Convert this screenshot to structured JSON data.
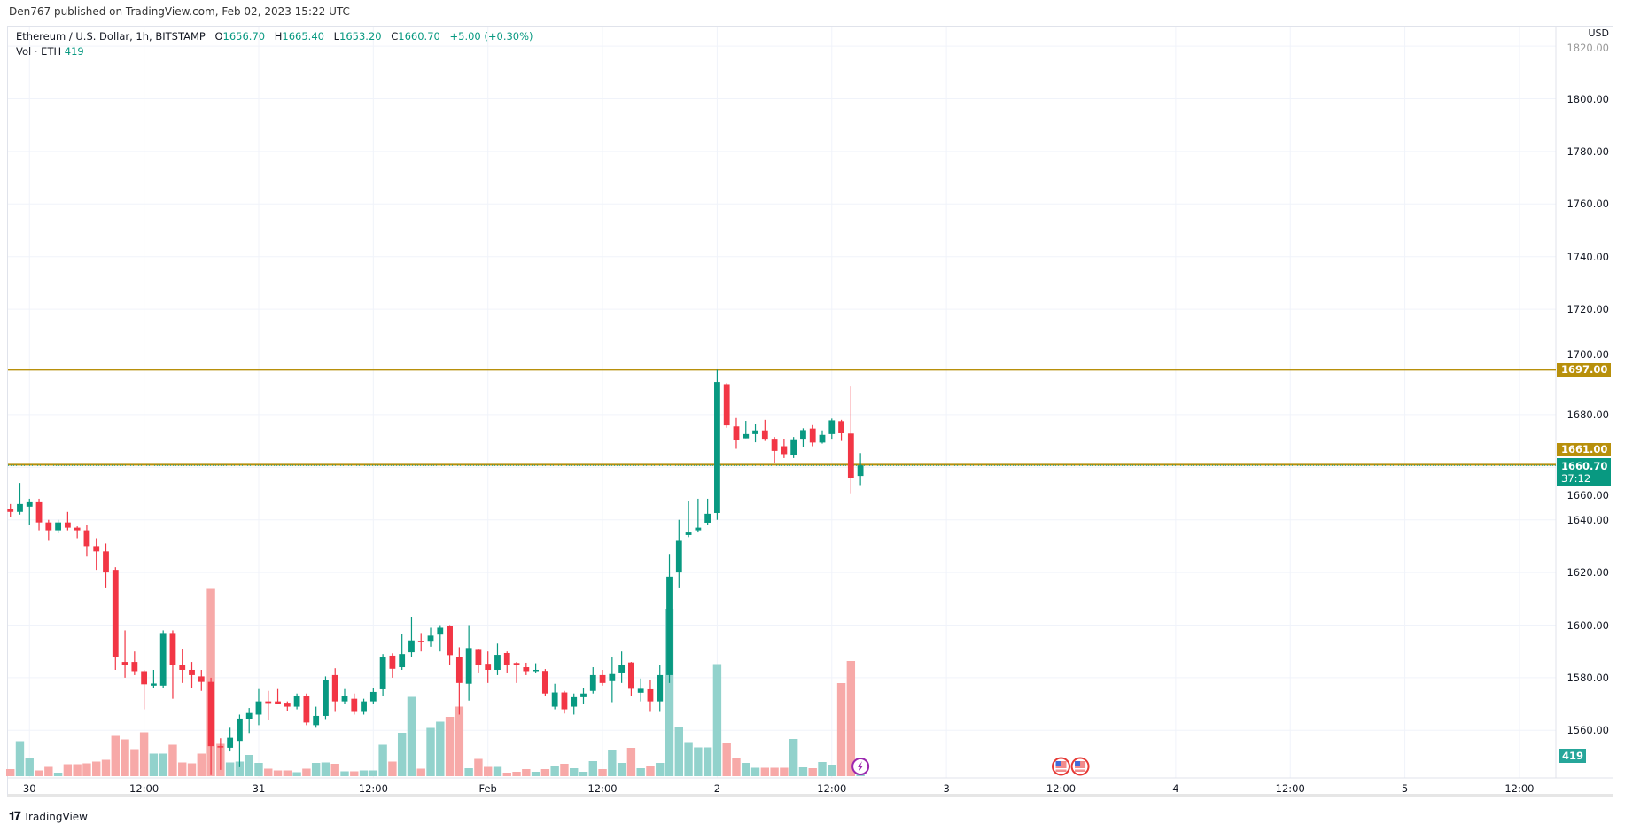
{
  "header": {
    "published": "Den767 published on TradingView.com, Feb 02, 2023 15:22 UTC"
  },
  "legend": {
    "symbol": "Ethereum / U.S. Dollar, 1h, BITSTAMP",
    "o_label": "O",
    "o": "1656.70",
    "h_label": "H",
    "h": "1665.40",
    "l_label": "L",
    "l": "1653.20",
    "c_label": "C",
    "c": "1660.70",
    "change": "+5.00 (+0.30%)",
    "vol_label": "Vol · ETH",
    "vol": "419"
  },
  "price_axis": {
    "currency": "USD",
    "ticks": [
      "1820.00",
      "1800.00",
      "1780.00",
      "1760.00",
      "1740.00",
      "1720.00",
      "1700.00",
      "1680.00",
      "1660.00",
      "1640.00",
      "1620.00",
      "1600.00",
      "1580.00",
      "1560.00"
    ],
    "tags": {
      "resistance": "1697.00",
      "support": "1661.00",
      "last_price": "1660.70",
      "countdown": "37:12",
      "volume": "419"
    }
  },
  "time_axis": {
    "ticks": [
      "30",
      "12:00",
      "31",
      "12:00",
      "Feb",
      "12:00",
      "2",
      "12:00",
      "3",
      "12:00",
      "4",
      "12:00",
      "5",
      "12:00"
    ]
  },
  "footer": {
    "brand": "TradingView"
  },
  "colors": {
    "up": "#089981",
    "down": "#f23645",
    "vol_up": "#92d2cc",
    "vol_down": "#f7a9a8",
    "level": "#b8900b",
    "event": "#9c27b0"
  },
  "chart_data": {
    "type": "candlestick",
    "interval": "1h",
    "ylim": [
      1545,
      1825
    ],
    "grid": true,
    "horizontal_levels": [
      1697.0,
      1661.0
    ],
    "columns": [
      "time",
      "open",
      "high",
      "low",
      "close",
      "volume"
    ],
    "candles": [
      [
        "Jan 29 22:00",
        1644,
        1646,
        1641,
        1643,
        160
      ],
      [
        "Jan 29 23:00",
        1643,
        1654,
        1642,
        1646,
        790
      ],
      [
        "Jan 30 00:00",
        1645,
        1648,
        1638,
        1647,
        410
      ],
      [
        "Jan 30 01:00",
        1647,
        1648,
        1636,
        1639,
        130
      ],
      [
        "Jan 30 02:00",
        1639,
        1640,
        1632,
        1636,
        210
      ],
      [
        "Jan 30 03:00",
        1636,
        1640,
        1635,
        1639,
        80
      ],
      [
        "Jan 30 04:00",
        1639,
        1643,
        1636,
        1637,
        270
      ],
      [
        "Jan 30 05:00",
        1637,
        1637.5,
        1633,
        1636,
        270
      ],
      [
        "Jan 30 06:00",
        1636,
        1638,
        1626,
        1630,
        290
      ],
      [
        "Jan 30 07:00",
        1630,
        1633,
        1621,
        1628,
        330
      ],
      [
        "Jan 30 08:00",
        1628,
        1631,
        1614,
        1620,
        370
      ],
      [
        "Jan 30 09:00",
        1621,
        1622,
        1583,
        1588,
        910
      ],
      [
        "Jan 30 10:00",
        1586,
        1598,
        1580,
        1585,
        830
      ],
      [
        "Jan 30 11:00",
        1586,
        1590,
        1581,
        1582.5,
        610
      ],
      [
        "Jan 30 12:00",
        1582.5,
        1583,
        1568,
        1577.5,
        990
      ],
      [
        "Jan 30 13:00",
        1577,
        1583,
        1576,
        1577.8,
        510
      ],
      [
        "Jan 30 14:00",
        1577,
        1598,
        1576,
        1597,
        510
      ],
      [
        "Jan 30 15:00",
        1597,
        1598,
        1572,
        1585,
        710
      ],
      [
        "Jan 30 16:00",
        1585,
        1591,
        1578,
        1583,
        310
      ],
      [
        "Jan 30 17:00",
        1583,
        1586,
        1576,
        1581,
        290
      ],
      [
        "Jan 30 18:00",
        1580.5,
        1583,
        1575,
        1578.4,
        510
      ],
      [
        "Jan 30 19:00",
        1578.4,
        1580,
        1543,
        1554,
        4230
      ],
      [
        "Jan 30 20:00",
        1554,
        1557,
        1545,
        1553.5,
        730
      ],
      [
        "Jan 30 21:00",
        1553.4,
        1561,
        1552,
        1557.2,
        310
      ],
      [
        "Jan 30 22:00",
        1556,
        1566,
        1546,
        1564.5,
        330
      ],
      [
        "Jan 30 23:00",
        1564.2,
        1568.5,
        1559,
        1566.6,
        480
      ],
      [
        "Jan 31 00:00",
        1566,
        1575.7,
        1562,
        1571,
        300
      ],
      [
        "Jan 31 01:00",
        1571,
        1575,
        1563.8,
        1570.4,
        170
      ],
      [
        "Jan 31 02:00",
        1571,
        1575.7,
        1570,
        1570.2,
        130
      ],
      [
        "Jan 31 03:00",
        1570.5,
        1571,
        1567.4,
        1569,
        130
      ],
      [
        "Jan 31 04:00",
        1569,
        1574,
        1568,
        1573,
        90
      ],
      [
        "Jan 31 05:00",
        1573,
        1574,
        1562,
        1563,
        170
      ],
      [
        "Jan 31 06:00",
        1562,
        1569,
        1561,
        1565.5,
        300
      ],
      [
        "Jan 31 07:00",
        1565.5,
        1580.5,
        1564,
        1579,
        310
      ],
      [
        "Jan 31 08:00",
        1581,
        1583.6,
        1567,
        1571,
        280
      ],
      [
        "Jan 31 09:00",
        1571,
        1575.7,
        1570,
        1573,
        110
      ],
      [
        "Jan 31 10:00",
        1572,
        1574,
        1566,
        1567,
        110
      ],
      [
        "Jan 31 11:00",
        1567,
        1572,
        1566,
        1571,
        130
      ],
      [
        "Jan 31 12:00",
        1571,
        1576,
        1570,
        1574.6,
        130
      ],
      [
        "Jan 31 13:00",
        1575.6,
        1589,
        1573,
        1588,
        710
      ],
      [
        "Jan 31 14:00",
        1588.4,
        1589.3,
        1580,
        1583.4,
        330
      ],
      [
        "Jan 31 15:00",
        1584,
        1596.6,
        1583,
        1589,
        980
      ],
      [
        "Jan 31 16:00",
        1589.7,
        1603.2,
        1588,
        1594.2,
        1790
      ],
      [
        "Jan 31 17:00",
        1594,
        1597,
        1590,
        1593.8,
        170
      ],
      [
        "Jan 31 18:00",
        1593.7,
        1599,
        1591.8,
        1596,
        1090
      ],
      [
        "Jan 31 19:00",
        1596.4,
        1600,
        1590,
        1599,
        1230
      ],
      [
        "Jan 31 20:00",
        1599.6,
        1600,
        1585,
        1588.6,
        1340
      ],
      [
        "Jan 31 21:00",
        1588,
        1591.6,
        1566,
        1578,
        1570
      ],
      [
        "Jan 31 22:00",
        1577.7,
        1600,
        1571.3,
        1591.3,
        180
      ],
      [
        "Jan 31 23:00",
        1590.6,
        1591,
        1582,
        1585,
        390
      ],
      [
        "Feb 01 00:00",
        1585.3,
        1590,
        1578,
        1583,
        210
      ],
      [
        "Feb 01 01:00",
        1583,
        1593,
        1581,
        1588.7,
        210
      ],
      [
        "Feb 01 02:00",
        1589.4,
        1590,
        1582,
        1585,
        80
      ],
      [
        "Feb 01 03:00",
        1585.6,
        1586,
        1578,
        1585,
        100
      ],
      [
        "Feb 01 04:00",
        1584,
        1585.7,
        1581,
        1582.5,
        160
      ],
      [
        "Feb 01 05:00",
        1582.6,
        1585.5,
        1582,
        1583,
        100
      ],
      [
        "Feb 01 06:00",
        1582.6,
        1583.3,
        1573,
        1574,
        160
      ],
      [
        "Feb 01 07:00",
        1569,
        1577.7,
        1568,
        1574.4,
        220
      ],
      [
        "Feb 01 08:00",
        1574.4,
        1575,
        1566.4,
        1568,
        280
      ],
      [
        "Feb 01 09:00",
        1569,
        1574,
        1566,
        1572.6,
        180
      ],
      [
        "Feb 01 10:00",
        1572.6,
        1576,
        1570,
        1574,
        100
      ],
      [
        "Feb 01 11:00",
        1575,
        1584,
        1574,
        1581,
        340
      ],
      [
        "Feb 01 12:00",
        1581,
        1583,
        1577,
        1578,
        160
      ],
      [
        "Feb 01 13:00",
        1578.7,
        1587.8,
        1570.7,
        1581.4,
        600
      ],
      [
        "Feb 01 14:00",
        1582,
        1590,
        1578,
        1585,
        300
      ],
      [
        "Feb 01 15:00",
        1585.8,
        1586,
        1573,
        1575.8,
        640
      ],
      [
        "Feb 01 16:00",
        1574.3,
        1579.7,
        1571,
        1575.8,
        180
      ],
      [
        "Feb 01 17:00",
        1575.6,
        1579.3,
        1567,
        1571,
        240
      ],
      [
        "Feb 01 18:00",
        1571,
        1585,
        1567,
        1581,
        300
      ],
      [
        "Feb 01 19:00",
        1581,
        1627,
        1578,
        1618.4,
        3780
      ],
      [
        "Feb 01 20:00",
        1620,
        1640,
        1614,
        1632,
        1120
      ],
      [
        "Feb 01 21:00",
        1634.2,
        1647.3,
        1633.4,
        1635.5,
        770
      ],
      [
        "Feb 01 22:00",
        1636,
        1648,
        1635.5,
        1637,
        650
      ],
      [
        "Feb 01 23:00",
        1638.9,
        1648,
        1638,
        1642.3,
        650
      ],
      [
        "Feb 02 00:00",
        1642.6,
        1697,
        1640,
        1692.4,
        2530
      ],
      [
        "Feb 02 01:00",
        1691.6,
        1692,
        1675,
        1675.9,
        750
      ],
      [
        "Feb 02 02:00",
        1675.5,
        1678.7,
        1667,
        1670.2,
        400
      ],
      [
        "Feb 02 03:00",
        1671,
        1677.6,
        1671,
        1672.6,
        300
      ],
      [
        "Feb 02 04:00",
        1672.6,
        1676.6,
        1669.5,
        1674,
        190
      ],
      [
        "Feb 02 05:00",
        1674,
        1678,
        1670,
        1670.5,
        190
      ],
      [
        "Feb 02 06:00",
        1670.5,
        1671.5,
        1661.6,
        1666.2,
        190
      ],
      [
        "Feb 02 07:00",
        1668,
        1670.8,
        1663.5,
        1665,
        190
      ],
      [
        "Feb 02 08:00",
        1664.7,
        1671.5,
        1663.5,
        1670.3,
        840
      ],
      [
        "Feb 02 09:00",
        1670.5,
        1674.8,
        1667.7,
        1674.1,
        200
      ],
      [
        "Feb 02 10:00",
        1674.7,
        1676,
        1668,
        1669.4,
        180
      ],
      [
        "Feb 02 11:00",
        1669.4,
        1674,
        1669,
        1672.3,
        320
      ],
      [
        "Feb 02 12:00",
        1672.6,
        1678.5,
        1670.5,
        1677.8,
        260
      ],
      [
        "Feb 02 13:00",
        1677.5,
        1678,
        1670,
        1672.9,
        2100
      ],
      [
        "Feb 02 14:00",
        1672.8,
        1690.7,
        1650.1,
        1655.8,
        2600
      ],
      [
        "Feb 02 15:00",
        1656.7,
        1665.4,
        1653.2,
        1660.7,
        419
      ]
    ],
    "events": [
      {
        "time": "Feb 02 15:00",
        "icon": "lightning-icon"
      },
      {
        "time": "Feb 03 12:00",
        "icon": "us-flag-icon"
      },
      {
        "time": "Feb 03 14:00",
        "icon": "us-flag-icon"
      }
    ]
  }
}
